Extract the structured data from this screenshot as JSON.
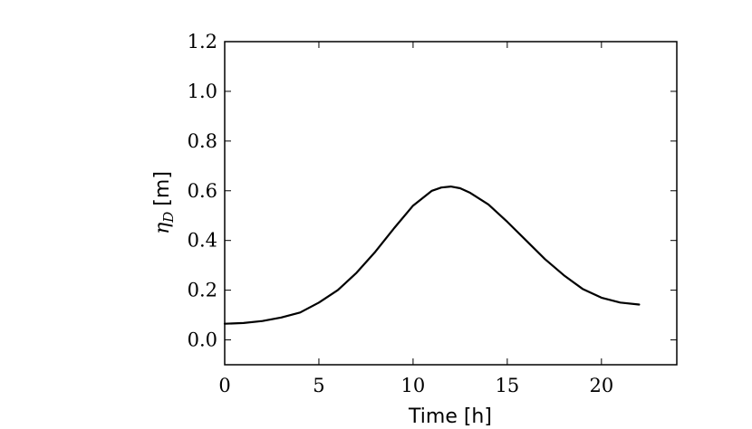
{
  "chart_data": {
    "type": "line",
    "xlabel": "Time [h]",
    "ylabel": {
      "symbol": "η",
      "subscript": "D",
      "unit": "[m]"
    },
    "xlim": [
      0,
      24
    ],
    "ylim": [
      -0.1,
      1.2
    ],
    "xticks": [
      0,
      5,
      10,
      15,
      20
    ],
    "yticks": [
      0.0,
      0.2,
      0.4,
      0.6,
      0.8,
      1.0,
      1.2
    ],
    "xtick_labels": [
      "0",
      "5",
      "10",
      "15",
      "20"
    ],
    "ytick_labels": [
      "0.0",
      "0.2",
      "0.4",
      "0.6",
      "0.8",
      "1.0",
      "1.2"
    ],
    "grid": false,
    "line_color": "#000000",
    "series": [
      {
        "x": [
          0,
          1,
          2,
          3,
          4,
          5,
          6,
          7,
          8,
          9,
          10,
          11,
          11.5,
          12,
          12.5,
          13,
          14,
          15,
          16,
          17,
          18,
          19,
          20,
          21,
          22
        ],
        "y": [
          0.065,
          0.068,
          0.076,
          0.09,
          0.11,
          0.15,
          0.2,
          0.27,
          0.355,
          0.45,
          0.54,
          0.6,
          0.613,
          0.617,
          0.61,
          0.593,
          0.545,
          0.475,
          0.4,
          0.325,
          0.26,
          0.205,
          0.17,
          0.15,
          0.142
        ]
      }
    ]
  }
}
